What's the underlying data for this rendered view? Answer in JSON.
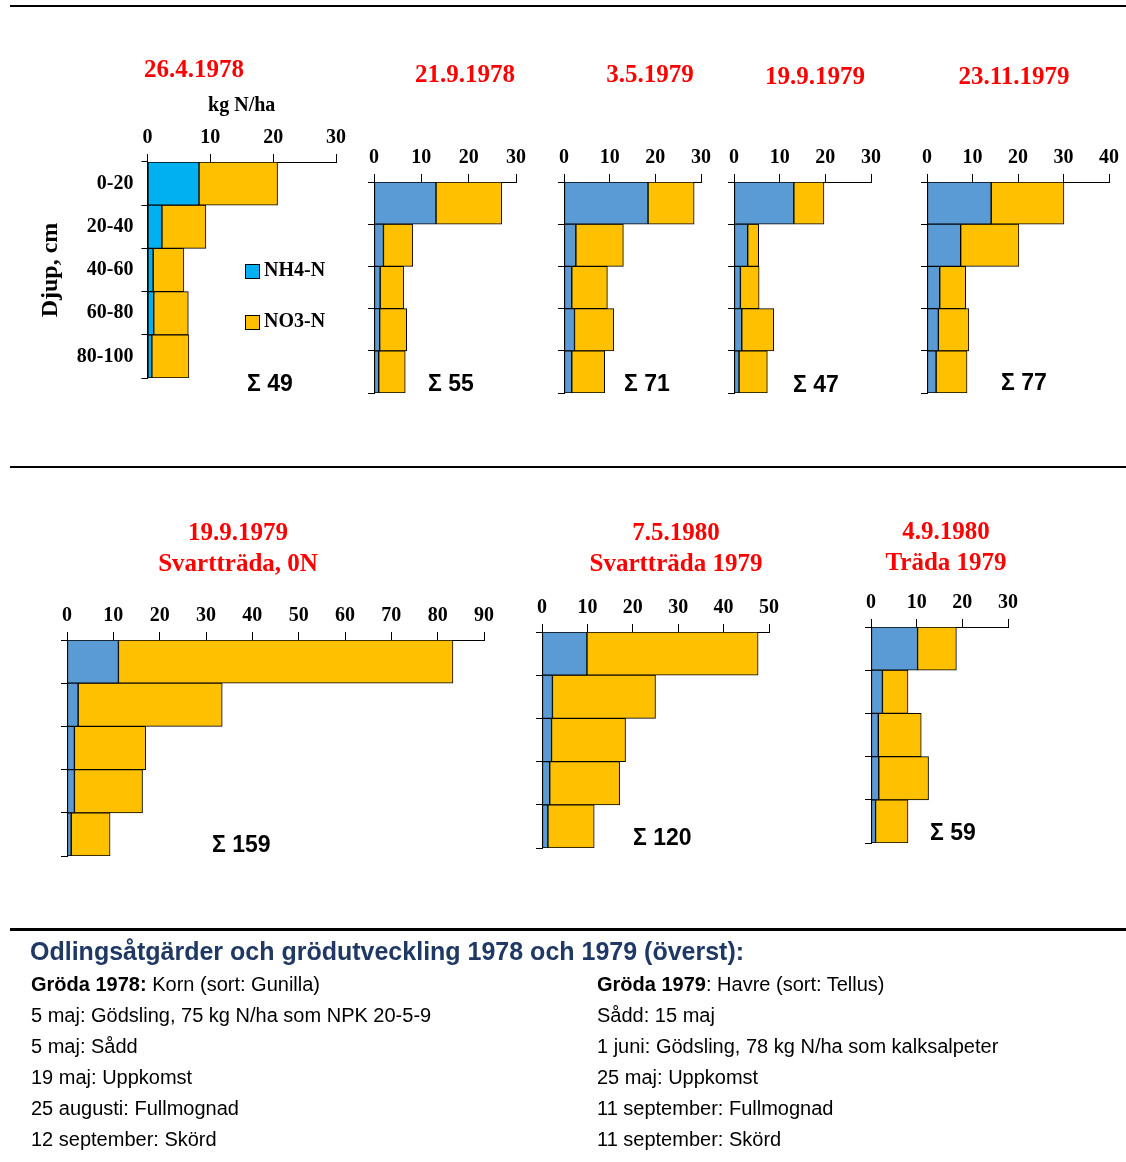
{
  "chart_data": [
    {
      "type": "bar",
      "orientation": "horizontal",
      "stacked": true,
      "title": "26.4.1978",
      "xlabel": "kg N/ha",
      "ylabel": "Djup, cm",
      "categories": [
        "0-20",
        "20-40",
        "40-60",
        "60-80",
        "80-100"
      ],
      "xlim": [
        0,
        30
      ],
      "xticks": [
        0,
        10,
        20,
        30
      ],
      "legend": "right",
      "annotations": [
        "Σ 49"
      ],
      "series": [
        {
          "name": "NH4-N",
          "color": "#00b0f0",
          "values": [
            8.2,
            2.3,
            0.9,
            1.0,
            0.7
          ]
        },
        {
          "name": "NO3-N",
          "color": "#ffc000",
          "values": [
            12.5,
            7.0,
            4.9,
            5.5,
            5.9
          ]
        }
      ]
    },
    {
      "type": "bar",
      "orientation": "horizontal",
      "stacked": true,
      "title": "21.9.1978",
      "categories": [
        null,
        null,
        null,
        null,
        null
      ],
      "xlim": [
        0,
        30
      ],
      "xticks": [
        0,
        10,
        20,
        30
      ],
      "tick_labels": "x",
      "annotations": [
        "Σ 55"
      ],
      "series": [
        {
          "color": "#5b9bd5",
          "values": [
            13.1,
            2.0,
            1.3,
            1.2,
            1.0
          ]
        },
        {
          "color": "#ffc000",
          "values": [
            13.9,
            6.2,
            5.0,
            5.7,
            5.6
          ]
        }
      ]
    },
    {
      "type": "bar",
      "orientation": "horizontal",
      "stacked": true,
      "title": "3.5.1979",
      "categories": [
        null,
        null,
        null,
        null,
        null
      ],
      "xlim": [
        0,
        30
      ],
      "xticks": [
        0,
        10,
        20,
        30
      ],
      "tick_labels": "x",
      "annotations": [
        "Σ 71"
      ],
      "series": [
        {
          "color": "#5b9bd5",
          "values": [
            18.4,
            2.6,
            1.7,
            2.3,
            1.7
          ]
        },
        {
          "color": "#ffc000",
          "values": [
            10.1,
            10.4,
            7.8,
            8.6,
            7.2
          ]
        }
      ]
    },
    {
      "type": "bar",
      "orientation": "horizontal",
      "stacked": true,
      "title": "19.9.1979",
      "categories": [
        null,
        null,
        null,
        null,
        null
      ],
      "xlim": [
        0,
        30
      ],
      "xticks": [
        0,
        10,
        20,
        30
      ],
      "tick_labels": "x",
      "annotations": [
        "Σ 47"
      ],
      "series": [
        {
          "color": "#5b9bd5",
          "values": [
            13.1,
            3.0,
            1.4,
            1.7,
            1.1
          ]
        },
        {
          "color": "#ffc000",
          "values": [
            6.6,
            2.4,
            4.1,
            7.0,
            6.2
          ]
        }
      ]
    },
    {
      "type": "bar",
      "orientation": "horizontal",
      "stacked": true,
      "title": "23.11.1979",
      "categories": [
        null,
        null,
        null,
        null,
        null
      ],
      "xlim": [
        0,
        40
      ],
      "xticks": [
        0,
        10,
        20,
        30,
        40
      ],
      "tick_labels": "x",
      "annotations": [
        "Σ 77"
      ],
      "series": [
        {
          "color": "#5b9bd5",
          "values": [
            14.1,
            7.4,
            2.8,
            2.5,
            2.0
          ]
        },
        {
          "color": "#ffc000",
          "values": [
            16.0,
            12.8,
            5.7,
            6.7,
            6.8
          ]
        }
      ]
    },
    {
      "type": "bar",
      "orientation": "horizontal",
      "stacked": true,
      "title": "19.9.1979",
      "subtitle": "Svartträda, 0N",
      "categories": [
        null,
        null,
        null,
        null,
        null
      ],
      "xlim": [
        0,
        90
      ],
      "xticks": [
        0,
        10,
        20,
        30,
        40,
        50,
        60,
        70,
        80,
        90
      ],
      "tick_labels": "x",
      "annotations": [
        "Σ 159"
      ],
      "series": [
        {
          "color": "#5b9bd5",
          "values": [
            11.1,
            2.4,
            1.6,
            1.6,
            0.9
          ]
        },
        {
          "color": "#ffc000",
          "values": [
            72.2,
            31.1,
            15.4,
            14.7,
            8.4
          ]
        }
      ]
    },
    {
      "type": "bar",
      "orientation": "horizontal",
      "stacked": true,
      "title": "7.5.1980",
      "subtitle": "Svartträda 1979",
      "categories": [
        null,
        null,
        null,
        null,
        null
      ],
      "xlim": [
        0,
        50
      ],
      "xticks": [
        0,
        10,
        20,
        30,
        40,
        50
      ],
      "tick_labels": "x",
      "annotations": [
        "Σ 120"
      ],
      "series": [
        {
          "color": "#5b9bd5",
          "values": [
            9.9,
            2.3,
            2.1,
            1.7,
            1.3
          ]
        },
        {
          "color": "#ffc000",
          "values": [
            37.7,
            22.7,
            16.3,
            15.4,
            10.2
          ]
        }
      ]
    },
    {
      "type": "bar",
      "orientation": "horizontal",
      "stacked": true,
      "title": "4.9.1980",
      "subtitle": "Träda 1979",
      "categories": [
        null,
        null,
        null,
        null,
        null
      ],
      "xlim": [
        0,
        30
      ],
      "xticks": [
        0,
        10,
        20,
        30
      ],
      "tick_labels": "x",
      "annotations": [
        "Σ 59"
      ],
      "series": [
        {
          "color": "#5b9bd5",
          "values": [
            10.2,
            2.5,
            1.6,
            1.7,
            1.0
          ]
        },
        {
          "color": "#ffc000",
          "values": [
            8.5,
            5.6,
            9.4,
            10.9,
            7.1
          ]
        }
      ]
    },
    {
      "type": "other",
      "title": "Odlingsåtgärder och grödutveckling 1978 och 1979 (överst):",
      "annotations": [
        "Gröda 1978: Korn (sort: Gunilla)",
        "5 maj: Gödsling, 75 kg N/ha som NPK 20-5-9",
        "5 maj: Sådd",
        "19 maj: Uppkomst",
        "25 augusti: Fullmognad",
        "12 september: Skörd",
        "Gröda 1979: Havre (sort: Tellus)",
        "Sådd: 15 maj",
        "1 juni: Gödsling, 78 kg N/ha som kalksalpeter",
        "25 maj: Uppkomst",
        "11 september: Fullmognad",
        "11 september: Skörd"
      ]
    }
  ]
}
